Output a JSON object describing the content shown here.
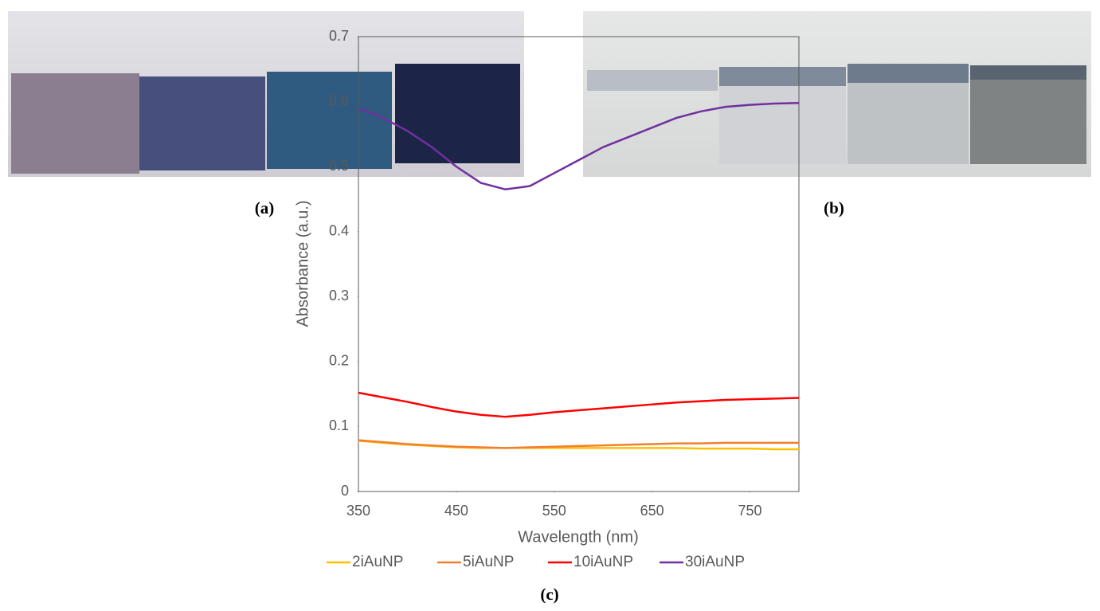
{
  "panels": [
    {
      "label": "(a)"
    },
    {
      "label": "(b)"
    },
    {
      "label": "(c)"
    }
  ],
  "chart_data": {
    "type": "line",
    "x_label": "Wavelength (nm)",
    "y_label": "Absorbance (a.u.)",
    "x": [
      350,
      375,
      400,
      425,
      450,
      475,
      500,
      525,
      550,
      575,
      600,
      625,
      650,
      675,
      700,
      725,
      750,
      775,
      800
    ],
    "series": [
      {
        "name": "2iAuNP",
        "color": "#ffc000",
        "values": [
          0.078,
          0.075,
          0.072,
          0.07,
          0.068,
          0.067,
          0.067,
          0.067,
          0.067,
          0.067,
          0.067,
          0.067,
          0.067,
          0.067,
          0.066,
          0.066,
          0.066,
          0.065,
          0.065
        ]
      },
      {
        "name": "5iAuNP",
        "color": "#f08030",
        "values": [
          0.079,
          0.076,
          0.073,
          0.071,
          0.069,
          0.068,
          0.067,
          0.068,
          0.069,
          0.07,
          0.071,
          0.072,
          0.073,
          0.074,
          0.074,
          0.075,
          0.075,
          0.075,
          0.075
        ]
      },
      {
        "name": "10iAuNP",
        "color": "#ff0000",
        "values": [
          0.152,
          0.145,
          0.138,
          0.13,
          0.123,
          0.118,
          0.115,
          0.118,
          0.122,
          0.125,
          0.128,
          0.131,
          0.134,
          0.137,
          0.139,
          0.141,
          0.142,
          0.143,
          0.144
        ]
      },
      {
        "name": "30iAuNP",
        "color": "#7030a0",
        "values": [
          0.59,
          0.575,
          0.555,
          0.53,
          0.5,
          0.475,
          0.465,
          0.47,
          0.49,
          0.51,
          0.53,
          0.545,
          0.56,
          0.575,
          0.585,
          0.592,
          0.595,
          0.597,
          0.598
        ]
      }
    ],
    "xlim": [
      350,
      800
    ],
    "xticks": [
      350,
      450,
      550,
      650,
      750
    ],
    "ylim": [
      0,
      0.7
    ],
    "yticks": [
      0,
      0.1,
      0.2,
      0.3,
      0.4,
      0.5,
      0.6,
      0.7
    ],
    "legend": "bottom"
  }
}
